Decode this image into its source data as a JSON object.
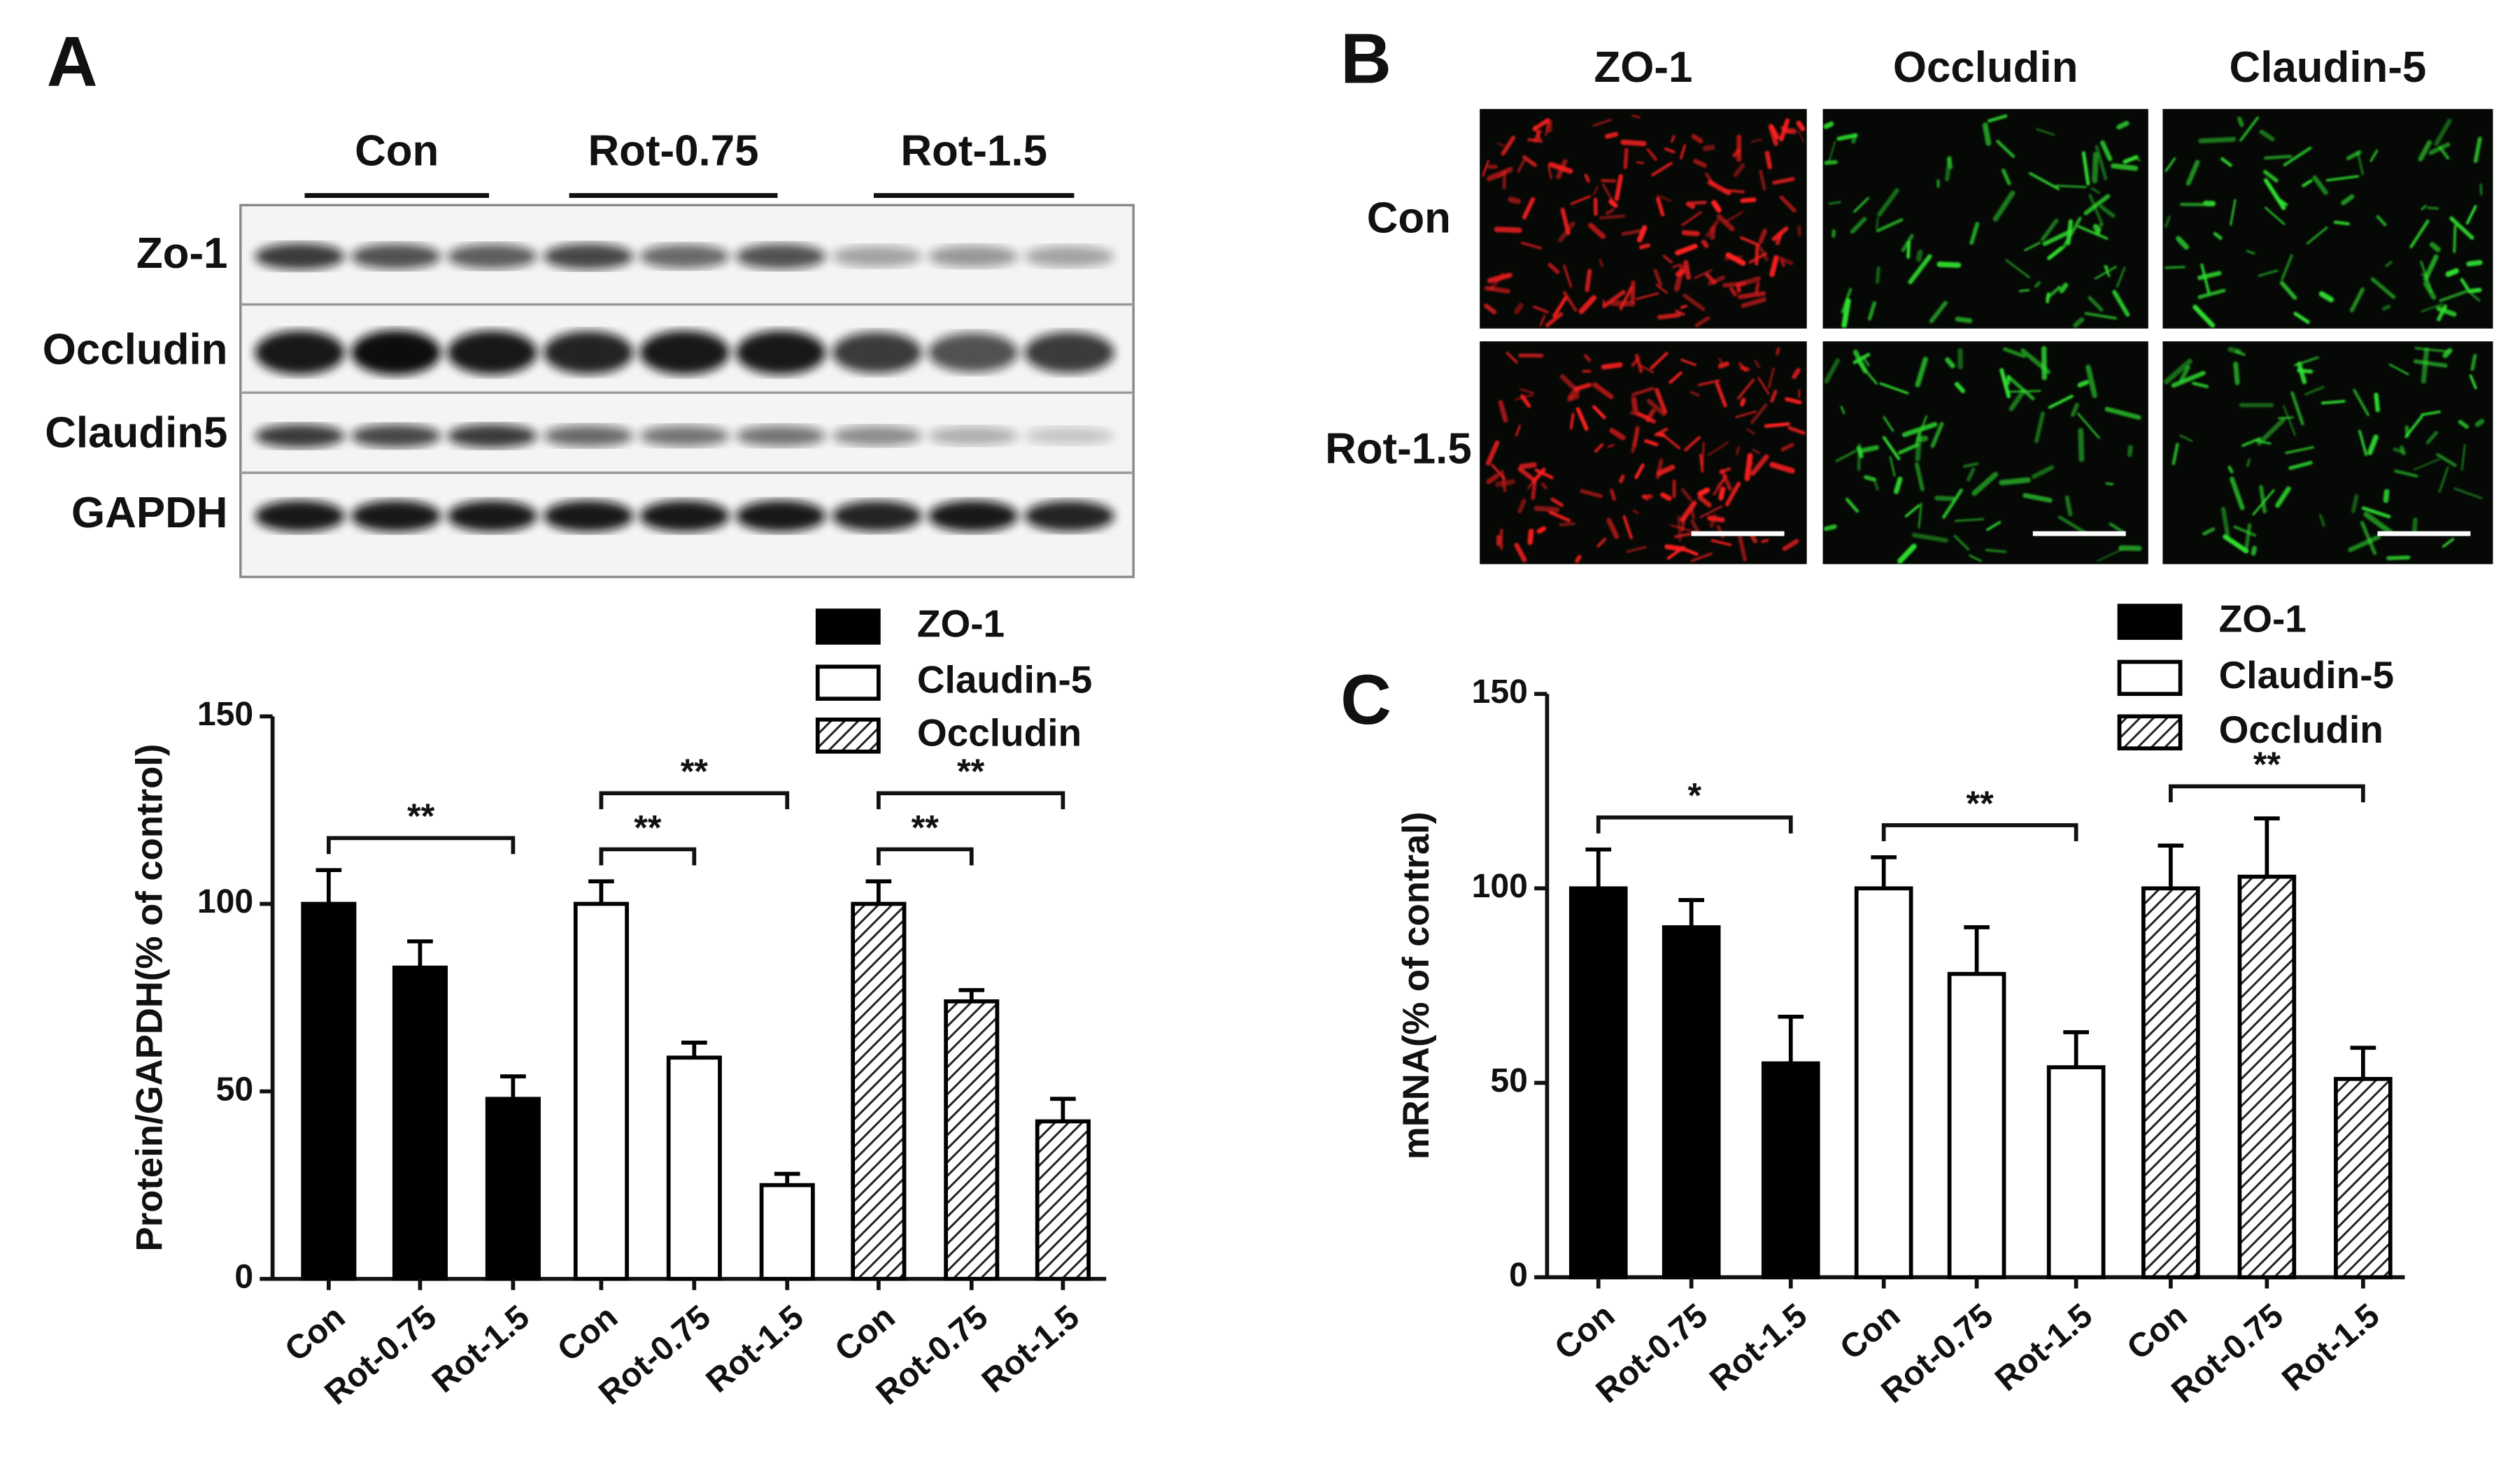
{
  "panel_labels": [
    "A",
    "B",
    "C"
  ],
  "western_blot": {
    "groups": [
      "Con",
      "Rot-0.75",
      "Rot-1.5"
    ],
    "rows": [
      "Zo-1",
      "Occludin",
      "Claudin5",
      "GAPDH"
    ]
  },
  "immunofluorescence": {
    "columns": [
      "ZO-1",
      "Occludin",
      "Claudin-5"
    ],
    "rows": [
      "Con",
      "Rot-1.5"
    ]
  },
  "chart_data": [
    {
      "type": "bar",
      "ylabel": "Protein/GAPDH(% of control)",
      "categories": [
        "Con",
        "Rot-0.75",
        "Rot-1.5"
      ],
      "series": [
        {
          "name": "ZO-1",
          "color": "#000000",
          "values": [
            100,
            83,
            48
          ],
          "errors": [
            9,
            7,
            6
          ]
        },
        {
          "name": "Claudin-5",
          "color": "#ffffff",
          "values": [
            100,
            59,
            25
          ],
          "errors": [
            6,
            4,
            3
          ]
        },
        {
          "name": "Occludin",
          "color": "#ffffff",
          "pattern": "hatch",
          "values": [
            100,
            74,
            42
          ],
          "errors": [
            6,
            3,
            6
          ]
        }
      ],
      "ylim": [
        0,
        150
      ],
      "yticks": [
        0,
        50,
        100,
        150
      ],
      "legend": "top-right",
      "significance": [
        {
          "series": "ZO-1",
          "from": "Con",
          "to": "Rot-1.5",
          "label": "**"
        },
        {
          "series": "Claudin-5",
          "from": "Con",
          "to": "Rot-0.75",
          "label": "**"
        },
        {
          "series": "Claudin-5",
          "from": "Con",
          "to": "Rot-1.5",
          "label": "**"
        },
        {
          "series": "Occludin",
          "from": "Con",
          "to": "Rot-0.75",
          "label": "**"
        },
        {
          "series": "Occludin",
          "from": "Con",
          "to": "Rot-1.5",
          "label": "**"
        }
      ]
    },
    {
      "type": "bar",
      "ylabel": "mRNA(% of contral)",
      "categories": [
        "Con",
        "Rot-0.75",
        "Rot-1.5"
      ],
      "series": [
        {
          "name": "ZO-1",
          "color": "#000000",
          "values": [
            100,
            90,
            55
          ],
          "errors": [
            10,
            7,
            12
          ]
        },
        {
          "name": "Claudin-5",
          "color": "#ffffff",
          "values": [
            100,
            78,
            54
          ],
          "errors": [
            8,
            12,
            9
          ]
        },
        {
          "name": "Occludin",
          "color": "#ffffff",
          "pattern": "hatch",
          "values": [
            100,
            103,
            51
          ],
          "errors": [
            11,
            15,
            8
          ]
        }
      ],
      "ylim": [
        0,
        150
      ],
      "yticks": [
        0,
        50,
        100,
        150
      ],
      "legend": "top-right",
      "significance": [
        {
          "series": "ZO-1",
          "from": "Con",
          "to": "Rot-1.5",
          "label": "*"
        },
        {
          "series": "Claudin-5",
          "from": "Con",
          "to": "Rot-1.5",
          "label": "**"
        },
        {
          "series": "Occludin",
          "from": "Con",
          "to": "Rot-1.5",
          "label": "**"
        }
      ]
    }
  ]
}
